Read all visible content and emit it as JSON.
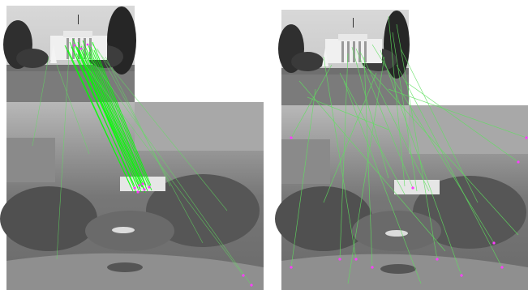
{
  "figure": {
    "panels": [
      {
        "id": "left",
        "description_id": "feature-matching-panel-1"
      },
      {
        "id": "right",
        "description_id": "feature-matching-panel-2"
      }
    ],
    "colors": {
      "match_line": "#00ff00",
      "match_line_faint": "#5fe05f",
      "keypoint": "#ff3cff",
      "background": "#ffffff"
    }
  }
}
